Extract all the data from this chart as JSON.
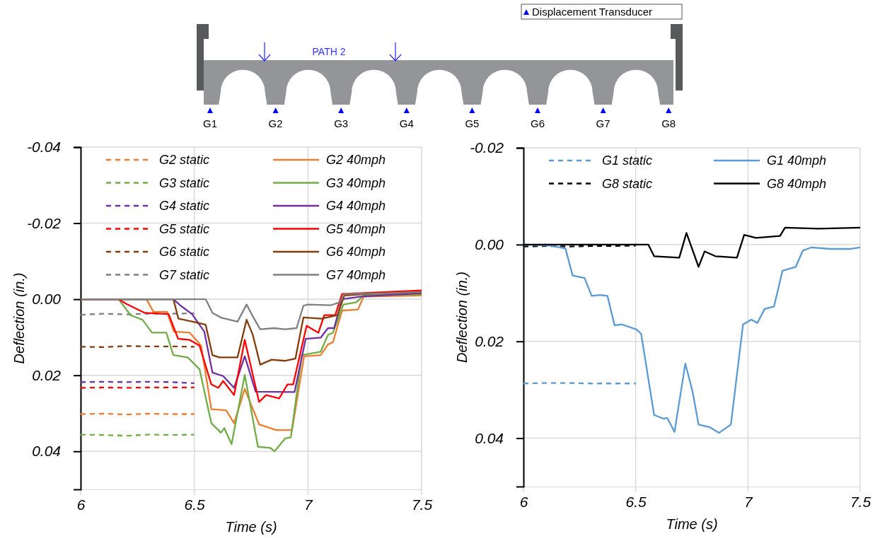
{
  "chart_data": [
    {
      "type": "other",
      "annotations": [
        "Displacement Transducer",
        "PATH 2",
        "G1",
        "G2",
        "G3",
        "G4",
        "G5",
        "G6",
        "G7",
        "G8"
      ]
    },
    {
      "type": "line",
      "xlabel": "Time (s)",
      "ylabel": "Deflection (in.)",
      "xlim": [
        6,
        7.5
      ],
      "ylim": [
        0.05,
        -0.04
      ],
      "xticks": [
        6,
        6.5,
        7,
        7.5
      ],
      "yticks": [
        -0.04,
        -0.02,
        {
          "value": 0,
          "label": "0.00"
        },
        0.02,
        0.04
      ],
      "grid": true,
      "legend": "top",
      "series": [
        {
          "name": "G2 static",
          "color": "#ed7d31",
          "line_style": "dashed",
          "x": [
            6,
            6.1,
            6.2,
            6.3,
            6.4,
            6.5
          ],
          "values": [
            0.0302,
            0.0301,
            0.0303,
            0.0301,
            0.0302,
            0.0302
          ]
        },
        {
          "name": "G3 static",
          "color": "#70ad47",
          "line_style": "dashed",
          "x": [
            6,
            6.1,
            6.2,
            6.3,
            6.4,
            6.5
          ],
          "values": [
            0.0356,
            0.0357,
            0.0359,
            0.0356,
            0.0357,
            0.0356
          ]
        },
        {
          "name": "G4 static",
          "color": "#7030a0",
          "line_style": "dashed",
          "x": [
            6,
            6.1,
            6.2,
            6.3,
            6.4,
            6.5
          ],
          "values": [
            0.0218,
            0.0217,
            0.0218,
            0.0217,
            0.0218,
            0.0221
          ]
        },
        {
          "name": "G5 static",
          "color": "#ff0000",
          "line_style": "dashed",
          "x": [
            6,
            6.1,
            6.2,
            6.3,
            6.4,
            6.5
          ],
          "values": [
            0.0233,
            0.0232,
            0.0233,
            0.0232,
            0.0232,
            0.0232
          ]
        },
        {
          "name": "G6 static",
          "color": "#843c0c",
          "line_style": "dashed",
          "x": [
            6,
            6.1,
            6.2,
            6.3,
            6.4,
            6.5
          ],
          "values": [
            0.0125,
            0.0126,
            0.0123,
            0.0124,
            0.0124,
            0.0125
          ]
        },
        {
          "name": "G7 static",
          "color": "#808080",
          "line_style": "dashed",
          "x": [
            6,
            6.1,
            6.2,
            6.3,
            6.4,
            6.5
          ],
          "values": [
            0.0041,
            0.0038,
            0.004,
            0.0038,
            0.0038,
            0.0037
          ]
        },
        {
          "name": "G2 40mph",
          "color": "#ed7d31",
          "line_style": "solid",
          "x": [
            6,
            6.29,
            6.32,
            6.38,
            6.41,
            6.48,
            6.53,
            6.575,
            6.64,
            6.675,
            6.722,
            6.785,
            6.86,
            6.93,
            6.983,
            7.056,
            7.088,
            7.11,
            7.15,
            7.22,
            7.245,
            7.5
          ],
          "values": [
            0,
            0,
            0.0033,
            0.0033,
            0.0085,
            0.0088,
            0.0122,
            0.0289,
            0.0292,
            0.0326,
            0.0236,
            0.0329,
            0.0344,
            0.0344,
            0.015,
            0.0147,
            0.0119,
            0.0113,
            0.003,
            0.0027,
            -0.0007,
            -0.001
          ]
        },
        {
          "name": "G3 40mph",
          "color": "#70ad47",
          "line_style": "solid",
          "x": [
            6,
            6.167,
            6.22,
            6.272,
            6.314,
            6.377,
            6.408,
            6.471,
            6.523,
            6.575,
            6.617,
            6.632,
            6.664,
            6.722,
            6.78,
            6.835,
            6.853,
            6.9,
            6.925,
            6.973,
            7.056,
            7.088,
            7.11,
            7.156,
            7.213,
            7.245,
            7.5
          ],
          "values": [
            0,
            0,
            0.0042,
            0.0054,
            0.0088,
            0.0088,
            0.0147,
            0.0153,
            0.0184,
            0.0326,
            0.0351,
            0.0339,
            0.0381,
            0.0199,
            0.0388,
            0.0391,
            0.04,
            0.0366,
            0.0363,
            0.0147,
            0.0138,
            0.0094,
            0.0088,
            0.0014,
            0.0008,
            -0.001,
            -0.0013
          ]
        },
        {
          "name": "G4 40mph",
          "color": "#7030a0",
          "line_style": "solid",
          "x": [
            6,
            6.408,
            6.44,
            6.49,
            6.544,
            6.58,
            6.627,
            6.675,
            6.722,
            6.77,
            6.941,
            6.99,
            7.056,
            7.088,
            7.115,
            7.15,
            7.234,
            7.5
          ],
          "values": [
            0,
            0,
            0.0017,
            0.0039,
            0.0085,
            0.0193,
            0.0202,
            0.0233,
            0.015,
            0.0243,
            0.0244,
            0.0104,
            0.0101,
            0.0076,
            0.0076,
            0,
            -0.0007,
            -0.0016
          ]
        },
        {
          "name": "G5 40mph",
          "color": "#ff0000",
          "line_style": "solid",
          "x": [
            6,
            6.167,
            6.2,
            6.282,
            6.387,
            6.429,
            6.48,
            6.523,
            6.575,
            6.606,
            6.627,
            6.675,
            6.722,
            6.785,
            6.816,
            6.873,
            6.91,
            6.935,
            6.994,
            7.046,
            7.072,
            7.12,
            7.15,
            7.5
          ],
          "values": [
            0,
            0,
            0.0012,
            0.0036,
            0.0039,
            0.0104,
            0.0107,
            0.0122,
            0.0224,
            0.0233,
            0.0215,
            0.0252,
            0.0107,
            0.027,
            0.0252,
            0.0261,
            0.0224,
            0.0224,
            0.007,
            0.0088,
            0.0042,
            0.0042,
            -0.0014,
            -0.0023
          ]
        },
        {
          "name": "G6 40mph",
          "color": "#843c0c",
          "line_style": "solid",
          "x": [
            6,
            6.2,
            6.408,
            6.43,
            6.5,
            6.55,
            6.58,
            6.61,
            6.69,
            6.73,
            6.757,
            6.79,
            6.84,
            6.9,
            6.945,
            6.98,
            7.06,
            7.13,
            7.16,
            7.3,
            7.5
          ],
          "values": [
            0,
            0,
            0,
            0.0051,
            0.006,
            0.0067,
            0.0147,
            0.0153,
            0.0153,
            0.0054,
            0.0093,
            0.0172,
            0.0159,
            0.0162,
            0.0156,
            0.0048,
            0.0051,
            0.0042,
            -0.001,
            -0.0015,
            -0.0018
          ]
        },
        {
          "name": "G7 40mph",
          "color": "#808080",
          "line_style": "solid",
          "x": [
            6,
            6.3,
            6.55,
            6.58,
            6.62,
            6.65,
            6.69,
            6.73,
            6.76,
            6.79,
            6.85,
            6.9,
            6.95,
            6.98,
            7.0,
            7.1,
            7.14,
            7.16,
            7.3,
            7.5
          ],
          "values": [
            0,
            0,
            0,
            0.0036,
            0.0049,
            0.0053,
            0.0059,
            0.0014,
            0.0048,
            0.0079,
            0.0076,
            0.0079,
            0.0076,
            0.0017,
            0.0014,
            0.0016,
            0.0008,
            -0.0014,
            -0.0015,
            -0.0019
          ]
        }
      ]
    },
    {
      "type": "line",
      "xlabel": "Time (s)",
      "ylabel": "Deflection (in.)",
      "xlim": [
        6,
        7.5
      ],
      "ylim": [
        0.05,
        -0.02
      ],
      "xticks": [
        6,
        6.5,
        7,
        7.5
      ],
      "yticks": [
        -0.02,
        {
          "value": 0,
          "label": "0.00"
        },
        0.02,
        0.04
      ],
      "grid": true,
      "legend": "top",
      "series": [
        {
          "name": "G1 static",
          "color": "#5b9bd5",
          "line_style": "dashed",
          "x": [
            6,
            6.1,
            6.2,
            6.3,
            6.4,
            6.5
          ],
          "values": [
            0.0287,
            0.0286,
            0.0286,
            0.0287,
            0.0287,
            0.0287
          ]
        },
        {
          "name": "G8 static",
          "color": "#000000",
          "line_style": "dashed",
          "x": [
            6,
            6.1,
            6.2,
            6.3,
            6.4,
            6.5
          ],
          "values": [
            0.0004,
            0.0003,
            0.0004,
            0.0003,
            0.0003,
            0.0002
          ]
        },
        {
          "name": "G1 40mph",
          "color": "#5b9bd5",
          "line_style": "solid",
          "x": [
            6,
            6.118,
            6.187,
            6.219,
            6.272,
            6.304,
            6.342,
            6.374,
            6.406,
            6.438,
            6.502,
            6.524,
            6.582,
            6.625,
            6.64,
            6.673,
            6.721,
            6.753,
            6.78,
            6.828,
            6.871,
            6.924,
            6.978,
            7.015,
            7.042,
            7.074,
            7.116,
            7.154,
            7.213,
            7.245,
            7.282,
            7.368,
            7.453,
            7.5
          ],
          "values": [
            0,
            0.0002,
            0.0008,
            0.0064,
            0.0069,
            0.0106,
            0.0104,
            0.0106,
            0.0167,
            0.0165,
            0.0175,
            0.0184,
            0.0352,
            0.036,
            0.0358,
            0.0387,
            0.0246,
            0.0303,
            0.0372,
            0.0377,
            0.0389,
            0.0372,
            0.0165,
            0.0155,
            0.0162,
            0.0133,
            0.0128,
            0.0054,
            0.0046,
            0.0012,
            0.0006,
            0.0009,
            0.0009,
            0.0006
          ]
        },
        {
          "name": "G8 40mph",
          "color": "#000000",
          "line_style": "solid",
          "x": [
            6,
            6.2,
            6.4,
            6.556,
            6.582,
            6.694,
            6.726,
            6.78,
            6.807,
            6.855,
            6.951,
            6.983,
            7.036,
            7.143,
            7.165,
            7.314,
            7.5
          ],
          "values": [
            0,
            0,
            0,
            0,
            0.0024,
            0.0027,
            -0.0024,
            0.0046,
            0.0014,
            0.0024,
            0.0027,
            -0.002,
            -0.0014,
            -0.0018,
            -0.0035,
            -0.0033,
            -0.0035
          ]
        }
      ]
    }
  ]
}
